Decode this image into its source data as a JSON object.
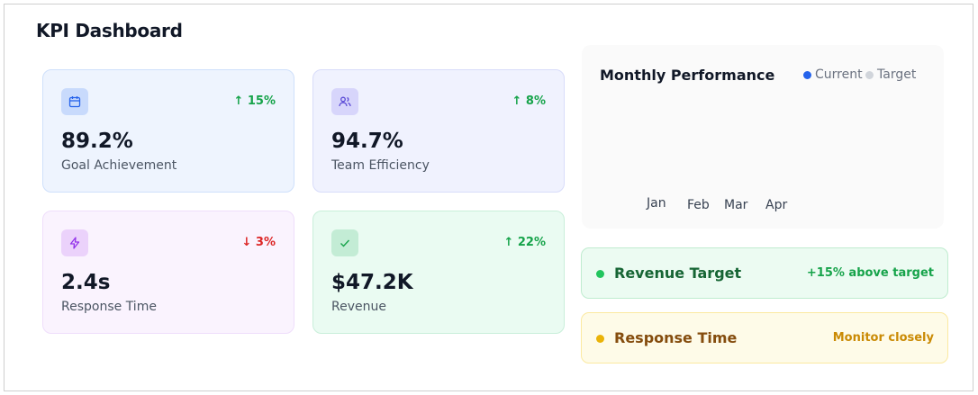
{
  "header": {
    "title": "KPI Dashboard"
  },
  "kpis": [
    {
      "value": "89.2%",
      "label": "Goal Achievement",
      "change": "↑ 15%"
    },
    {
      "value": "94.7%",
      "label": "Team Efficiency",
      "change": "↑ 8%"
    },
    {
      "value": "2.4s",
      "label": "Response Time",
      "change": "↓ 3%"
    },
    {
      "value": "$47.2K",
      "label": "Revenue",
      "change": "↑ 22%"
    }
  ],
  "chart": {
    "title": "Monthly Performance",
    "legend": [
      "Current",
      "Target"
    ],
    "months": [
      "Jan",
      "Feb",
      "Mar",
      "Apr"
    ]
  },
  "alerts": [
    {
      "title": "Revenue Target",
      "status": "+15% above target"
    },
    {
      "title": "Response Time",
      "status": "Monitor closely"
    }
  ]
}
